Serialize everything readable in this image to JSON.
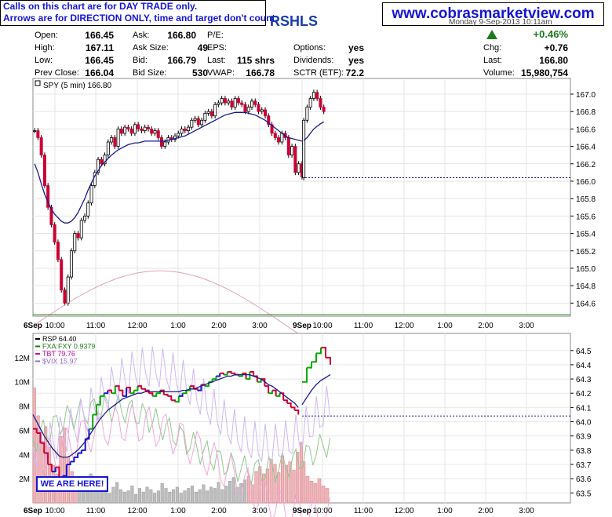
{
  "notice": {
    "line1": "Calls on this chart are for DAY TRADE only.",
    "line2": "Arrows are for DIRECTION ONLY, time and target don't count."
  },
  "site": "www.cobrasmarketview.com",
  "title_text": "RSHLS",
  "dateline": "Monday  9-Sep-2013  10:11am",
  "quote": {
    "open_label": "Open:",
    "open": "166.45",
    "high_label": "High:",
    "high": "167.11",
    "low_label": "Low:",
    "low": "166.45",
    "prev_label": "Prev Close:",
    "prev": "166.04",
    "ask_label": "Ask:",
    "ask": "166.80",
    "asksize_label": "Ask Size:",
    "asksize": "49",
    "bid_label": "Bid:",
    "bid": "166.79",
    "bidsize_label": "Bid Size:",
    "bidsize": "530",
    "pe_label": "P/E:",
    "pe": "",
    "eps_label": "EPS:",
    "eps": "",
    "last_label": "Last:",
    "last_shrs": "115 shrs",
    "vwap_label": "VWAP:",
    "vwap": "166.78",
    "options_label": "Options:",
    "options": "yes",
    "div_label": "Dividends:",
    "div": "yes",
    "sctr_label": "SCTR (ETF):",
    "sctr": "72.2",
    "pct": "+0.46%",
    "chg_label": "Chg:",
    "chg": "+0.76",
    "last2_label": "Last:",
    "last2": "166.80",
    "vol_label": "Volume:",
    "vol": "15,980,754"
  },
  "colors": {
    "up": "#00aa00",
    "down": "#cc0033",
    "ma": "#1a1a8c",
    "text_blue": "#1515d0",
    "pink": "#e0a0c0",
    "green_line": "#90c890",
    "purple": "#c0a0e0"
  },
  "annotation": "WE ARE HERE!",
  "chart_data": [
    {
      "type": "candlestick",
      "legend": "SPY (5 min) 166.80",
      "ylim": [
        164.45,
        167.18
      ],
      "y_ticks": [
        "167.0",
        "166.8",
        "166.6",
        "166.4",
        "166.2",
        "166.0",
        "165.8",
        "165.6",
        "165.4",
        "165.2",
        "165.0",
        "164.8",
        "164.6"
      ],
      "x_ticks": [
        "6Sep",
        "10:00",
        "11:00",
        "12:00",
        "1:00",
        "2:00",
        "3:00",
        "9Sep",
        "10:00",
        "11:00",
        "12:00",
        "1:00",
        "2:00",
        "3:00"
      ],
      "close": [
        166.58,
        166.5,
        166.3,
        165.95,
        165.7,
        165.5,
        165.3,
        165.1,
        164.75,
        164.6,
        164.9,
        165.2,
        165.4,
        165.35,
        165.55,
        165.6,
        165.75,
        165.95,
        166.1,
        166.25,
        166.2,
        166.3,
        166.45,
        166.5,
        166.4,
        166.6,
        166.55,
        166.62,
        166.6,
        166.55,
        166.65,
        166.6,
        166.58,
        166.62,
        166.6,
        166.55,
        166.58,
        166.5,
        166.4,
        166.45,
        166.5,
        166.48,
        166.52,
        166.55,
        166.6,
        166.58,
        166.62,
        166.7,
        166.72,
        166.65,
        166.7,
        166.78,
        166.8,
        166.75,
        166.88,
        166.9,
        166.95,
        166.9,
        166.92,
        166.85,
        166.95,
        166.9,
        166.88,
        166.8,
        166.85,
        166.92,
        166.88,
        166.8,
        166.82,
        166.75,
        166.65,
        166.55,
        166.5,
        166.45,
        166.55,
        166.5,
        166.3,
        166.4,
        166.1,
        166.2,
        166.05
      ],
      "close_day2": [
        166.7,
        166.85,
        166.95,
        167.02,
        166.95,
        166.85,
        166.8
      ],
      "ma": [
        166.2,
        166.1,
        165.97,
        165.85,
        165.76,
        165.68,
        165.62,
        165.58,
        165.54,
        165.52,
        165.52,
        165.54,
        165.58,
        165.64,
        165.72,
        165.8,
        165.9,
        165.98,
        166.06,
        166.12,
        166.18,
        166.22,
        166.26,
        166.3,
        166.33,
        166.36,
        166.38,
        166.4,
        166.42,
        166.43,
        166.44,
        166.44,
        166.45,
        166.46,
        166.46,
        166.46,
        166.46,
        166.46,
        166.46,
        166.46,
        166.47,
        166.48,
        166.49,
        166.5,
        166.51,
        166.52,
        166.54,
        166.56,
        166.58,
        166.6,
        166.62,
        166.64,
        166.66,
        166.68,
        166.7,
        166.72,
        166.74,
        166.76,
        166.77,
        166.78,
        166.79,
        166.79,
        166.79,
        166.79,
        166.78,
        166.77,
        166.76,
        166.74,
        166.72,
        166.7,
        166.67,
        166.64,
        166.61,
        166.58,
        166.55,
        166.52,
        166.5,
        166.49,
        166.48,
        166.47,
        166.46
      ],
      "ma_day2": [
        166.47,
        166.5,
        166.55,
        166.6,
        166.63,
        166.66,
        166.68
      ],
      "prev_close": 166.04
    },
    {
      "type": "line",
      "legend": [
        {
          "name": "RSP  64.40",
          "color": "#000000"
        },
        {
          "name": "FXA:FXY  0.9379",
          "color": "#1a7a1a"
        },
        {
          "name": "TBT  79.76",
          "color": "#cc00aa"
        },
        {
          "name": "$VIX  15.97",
          "color": "#9966cc"
        }
      ],
      "ylim": [
        63.43,
        64.62
      ],
      "y_ticks": [
        "64.5",
        "64.4",
        "64.3",
        "64.2",
        "64.1",
        "64.0",
        "63.9",
        "63.8",
        "63.7",
        "63.6",
        "63.5"
      ],
      "vol_ticks": [
        "12M",
        "10M",
        "8M",
        "6M",
        "4M",
        "2M"
      ],
      "vol_max_m": 14,
      "rsp_close": [
        63.95,
        63.92,
        63.85,
        63.78,
        63.7,
        63.65,
        63.68,
        63.6,
        63.62,
        63.7,
        63.72,
        63.75,
        63.78,
        63.8,
        63.88,
        63.95,
        64.05,
        64.12,
        64.18,
        64.2,
        64.22,
        64.2,
        64.25,
        64.22,
        64.18,
        64.24,
        64.2,
        64.22,
        64.25,
        64.23,
        64.22,
        64.2,
        64.18,
        64.2,
        64.22,
        64.19,
        64.18,
        64.15,
        64.14,
        64.18,
        64.2,
        64.22,
        64.25,
        64.23,
        64.22,
        64.26,
        64.25,
        64.28,
        64.3,
        64.32,
        64.34,
        64.33,
        64.35,
        64.34,
        64.33,
        64.32,
        64.34,
        64.3,
        64.35,
        64.32,
        64.28,
        64.3,
        64.25,
        64.2,
        64.22,
        64.18,
        64.2,
        64.15,
        64.13,
        64.1,
        64.08,
        64.05
      ],
      "rsp_ma": [
        64.05,
        64.0,
        63.95,
        63.9,
        63.86,
        63.82,
        63.79,
        63.76,
        63.75,
        63.75,
        63.76,
        63.78,
        63.8,
        63.83,
        63.86,
        63.9,
        63.94,
        63.98,
        64.02,
        64.05,
        64.08,
        64.1,
        64.12,
        64.14,
        64.16,
        64.17,
        64.18,
        64.19,
        64.2,
        64.2,
        64.21,
        64.21,
        64.21,
        64.21,
        64.21,
        64.21,
        64.21,
        64.21,
        64.21,
        64.21,
        64.22,
        64.22,
        64.23,
        64.23,
        64.24,
        64.25,
        64.26,
        64.27,
        64.28,
        64.29,
        64.3,
        64.31,
        64.32,
        64.32,
        64.33,
        64.33,
        64.33,
        64.33,
        64.33,
        64.32,
        64.31,
        64.3,
        64.28,
        64.26,
        64.25,
        64.23,
        64.21,
        64.19,
        64.17,
        64.15,
        64.13,
        64.1
      ],
      "rsp_day2": [
        64.28,
        64.38,
        64.42,
        64.48,
        64.52,
        64.45,
        64.4
      ],
      "rsp_ma_day2": [
        64.12,
        64.17,
        64.22,
        64.26,
        64.29,
        64.31,
        64.33
      ],
      "volume_m": [
        9.5,
        7.2,
        5.1,
        6.3,
        4.6,
        3.1,
        2.4,
        5.5,
        6.2,
        3.8,
        2.6,
        1.8,
        2.1,
        1.5,
        2.0,
        2.4,
        1.9,
        1.2,
        1.5,
        1.0,
        0.8,
        1.3,
        1.7,
        1.1,
        0.9,
        1.0,
        1.4,
        0.7,
        1.2,
        0.9,
        1.3,
        1.1,
        0.8,
        1.0,
        1.6,
        1.2,
        0.9,
        1.1,
        1.3,
        0.8,
        1.0,
        1.2,
        1.4,
        0.9,
        1.1,
        1.5,
        1.0,
        1.3,
        1.2,
        1.7,
        1.1,
        1.4,
        1.8,
        2.1,
        1.3,
        1.6,
        1.9,
        2.2,
        1.5,
        2.6,
        3.0,
        2.4,
        2.8,
        3.6,
        3.2,
        2.5,
        3.9,
        3.1,
        3.4,
        2.7,
        4.2,
        5.0
      ],
      "volume_day2": [
        3.4,
        2.2,
        1.8,
        1.6,
        2.0,
        1.4,
        1.2
      ]
    }
  ]
}
